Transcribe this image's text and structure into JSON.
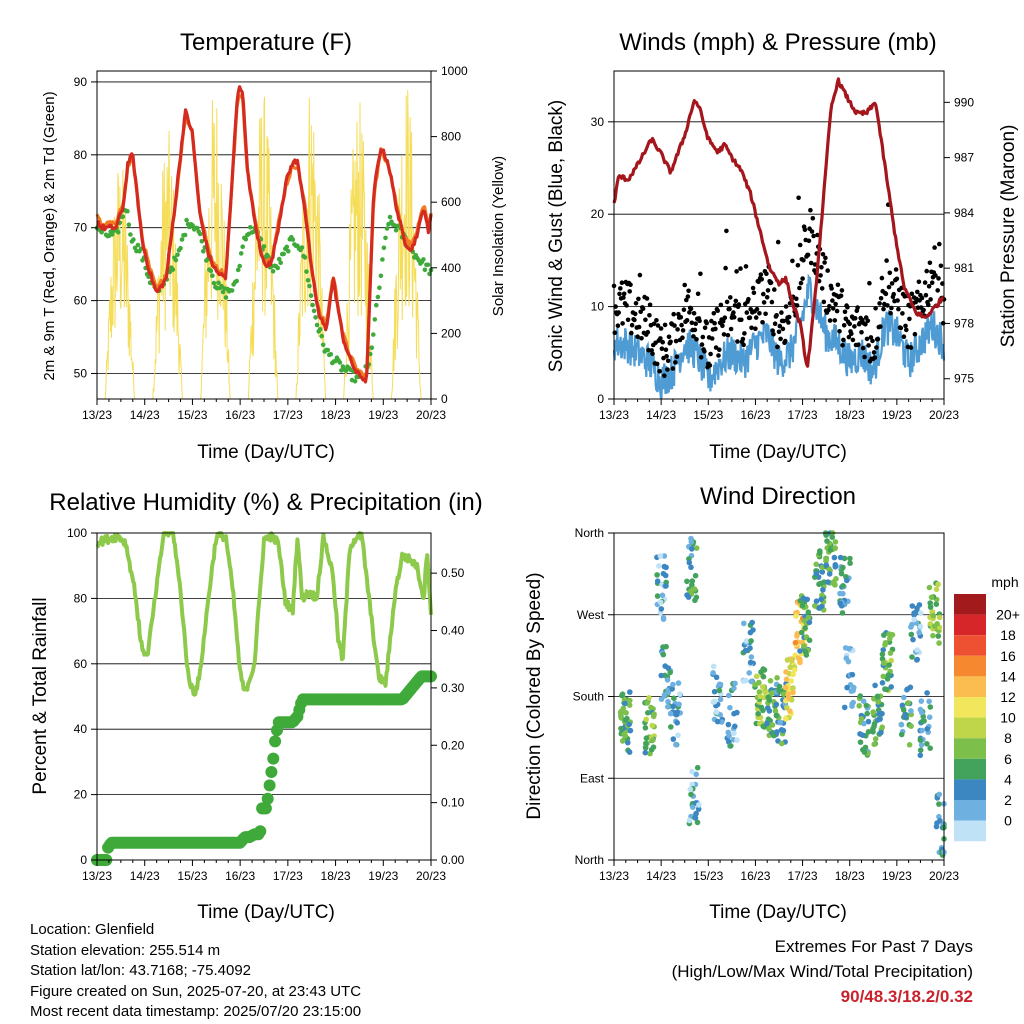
{
  "info": {
    "location": "Location: Glenfield",
    "elevation": "Station elevation: 255.514 m",
    "latlon": "Station lat/lon: 43.7168; -75.4092",
    "created": "Figure created on Sun, 2025-07-20, at 23:43 UTC",
    "recent": "Most recent data timestamp: 2025/07/20 23:15:00"
  },
  "extremes": {
    "title": "Extremes For Past 7 Days",
    "subtitle": "(High/Low/Max Wind/Total Precipitation)",
    "values": "90/48.3/18.2/0.32",
    "color": "#c8232c"
  },
  "colors": {
    "temp2m": "#d42a20",
    "temp9m": "#f07b22",
    "dewpoint": "#3faa3a",
    "solar": "#f5dd5a",
    "wind": "#4f9bd4",
    "gust": "#000000",
    "pressure": "#a4161c",
    "rh": "#8dca4b",
    "precip": "#3faa3a"
  },
  "chart_data": [
    {
      "type": "line",
      "title": "Temperature (F)",
      "xlabel": "Time (Day/UTC)",
      "ylabel": "2m & 9m T (Red, Orange) & 2m Td (Green)",
      "y2label": "Solar Insolation (Yellow)",
      "x_ticks": [
        "13/23",
        "14/23",
        "15/23",
        "16/23",
        "17/23",
        "18/23",
        "19/23",
        "20/23"
      ],
      "y_ticks": [
        50,
        60,
        70,
        80,
        90
      ],
      "y2_ticks": [
        0,
        200,
        400,
        600,
        800,
        1000
      ],
      "xlim": [
        0,
        7
      ],
      "ylim": [
        46.5,
        91.5
      ],
      "y2lim": [
        0,
        1000
      ],
      "grid": true,
      "series": [
        {
          "name": "2m T",
          "axis": "left",
          "x": [
            0,
            0.1,
            0.4,
            0.55,
            0.65,
            0.75,
            0.95,
            1.1,
            1.25,
            1.45,
            1.65,
            1.85,
            2.0,
            2.15,
            2.35,
            2.5,
            2.7,
            2.95,
            3.05,
            3.15,
            3.3,
            3.45,
            3.55,
            3.65,
            3.8,
            3.95,
            4.1,
            4.2,
            4.35,
            4.5,
            4.65,
            4.8,
            4.95,
            5.15,
            5.3,
            5.45,
            5.65,
            5.8,
            5.95,
            6.1,
            6.3,
            6.45,
            6.6,
            6.75,
            6.85,
            6.95,
            7.0
          ],
          "values": [
            71,
            70,
            70,
            73,
            79,
            80,
            68,
            64,
            61,
            63,
            74,
            86,
            83,
            72,
            66,
            64,
            63,
            89,
            89,
            78,
            71,
            66,
            65,
            65,
            70,
            76,
            79,
            79,
            73,
            64,
            58,
            56,
            63,
            55,
            52,
            50,
            49,
            75,
            81,
            79,
            72,
            68,
            67,
            70,
            73,
            69,
            72
          ]
        },
        {
          "name": "9m T",
          "axis": "left",
          "x": [
            0,
            0.1,
            0.4,
            0.55,
            0.65,
            0.75,
            0.95,
            1.1,
            1.25,
            1.45,
            1.65,
            1.85,
            2.0,
            2.15,
            2.35,
            2.5,
            2.7,
            2.95,
            3.05,
            3.15,
            3.3,
            3.45,
            3.55,
            3.65,
            3.8,
            3.95,
            4.1,
            4.2,
            4.35,
            4.5,
            4.65,
            4.8,
            4.95,
            5.15,
            5.3,
            5.45,
            5.65,
            5.8,
            5.95,
            6.1,
            6.3,
            6.45,
            6.6,
            6.75,
            6.85,
            6.95,
            7.0
          ],
          "values": [
            71.5,
            70.5,
            70.5,
            73.5,
            78.5,
            79.5,
            68.5,
            64.5,
            61.5,
            63.5,
            73.5,
            85.5,
            83,
            72.5,
            66.5,
            64.5,
            63.5,
            88,
            88,
            78,
            71.5,
            66.5,
            65.5,
            65.5,
            70.5,
            75.5,
            78.5,
            78.5,
            73.5,
            64.5,
            58.5,
            56.5,
            63.5,
            55.5,
            52.5,
            50.5,
            49.5,
            74.5,
            80.5,
            79,
            72.5,
            68.5,
            67.5,
            70.5,
            73,
            70,
            72
          ]
        },
        {
          "name": "2m Td",
          "axis": "left",
          "x": [
            0,
            0.2,
            0.4,
            0.6,
            0.75,
            0.9,
            1.1,
            1.3,
            1.5,
            1.7,
            1.9,
            2.1,
            2.3,
            2.5,
            2.7,
            2.9,
            3.1,
            3.3,
            3.5,
            3.7,
            3.9,
            4.05,
            4.2,
            4.35,
            4.5,
            4.65,
            4.8,
            4.95,
            5.1,
            5.3,
            5.5,
            5.7,
            5.9,
            6.1,
            6.3,
            6.5,
            6.7,
            6.85,
            7.0
          ],
          "values": [
            70,
            69,
            69,
            73,
            68,
            67,
            63,
            61,
            64,
            66,
            71,
            70,
            66,
            62,
            61,
            62,
            69,
            70,
            67,
            64,
            66,
            68,
            68,
            66,
            60,
            56,
            53,
            52,
            51,
            50,
            49,
            51,
            61,
            71,
            70,
            68,
            66,
            65,
            64
          ]
        },
        {
          "name": "Solar Insolation",
          "axis": "right",
          "day_x": [
            0.05,
            1.05,
            2.05,
            3.05,
            4.05,
            5.05,
            6.05
          ],
          "peaks": [
            750,
            830,
            980,
            950,
            1000,
            920,
            1000
          ]
        }
      ]
    },
    {
      "type": "line",
      "title": "Winds (mph) & Pressure (mb)",
      "xlabel": "Time (Day/UTC)",
      "ylabel": "Sonic Wind & Gust (Blue, Black)",
      "y2label": "Station Pressure (Maroon)",
      "x_ticks": [
        "13/23",
        "14/23",
        "15/23",
        "16/23",
        "17/23",
        "18/23",
        "19/23",
        "20/23"
      ],
      "y_ticks": [
        0,
        10,
        20,
        30
      ],
      "y2_ticks": [
        975,
        978,
        981,
        984,
        987,
        990
      ],
      "xlim": [
        0,
        7
      ],
      "ylim": [
        0,
        35.5
      ],
      "y2lim": [
        973.9,
        991.7
      ],
      "grid": true,
      "series": [
        {
          "name": "Gust",
          "axis": "left",
          "x": [
            0,
            0.25,
            0.5,
            0.75,
            1.0,
            1.25,
            1.5,
            1.75,
            2.0,
            2.25,
            2.5,
            2.75,
            3.0,
            3.25,
            3.5,
            3.75,
            4.0,
            4.15,
            4.3,
            4.5,
            4.75,
            5.0,
            5.25,
            5.5,
            5.75,
            6.0,
            6.25,
            6.5,
            6.75,
            7.0
          ],
          "values": [
            10,
            10,
            9,
            8,
            5,
            6,
            10,
            9,
            5,
            8,
            9,
            8,
            10,
            12,
            8,
            9,
            15,
            18,
            16,
            12,
            10,
            7,
            8,
            6,
            13,
            11,
            8,
            10,
            14,
            11
          ]
        },
        {
          "name": "Wind",
          "axis": "left",
          "x": [
            0,
            0.25,
            0.5,
            0.75,
            1.0,
            1.25,
            1.5,
            1.75,
            2.0,
            2.25,
            2.5,
            2.75,
            3.0,
            3.25,
            3.5,
            3.75,
            4.0,
            4.15,
            4.3,
            4.5,
            4.75,
            5.0,
            5.25,
            5.5,
            5.75,
            6.0,
            6.25,
            6.5,
            6.75,
            7.0
          ],
          "values": [
            6,
            6,
            5,
            4,
            2,
            3,
            6,
            5,
            2,
            4,
            5,
            4,
            6,
            7,
            4,
            5,
            9,
            12,
            10,
            7,
            6,
            4,
            5,
            3,
            8,
            7,
            4,
            6,
            8,
            6
          ]
        },
        {
          "name": "Pressure",
          "axis": "right",
          "x": [
            0,
            0.1,
            0.3,
            0.5,
            0.8,
            1.0,
            1.2,
            1.5,
            1.7,
            1.8,
            2.0,
            2.2,
            2.35,
            2.5,
            2.7,
            2.9,
            3.1,
            3.3,
            3.5,
            3.65,
            3.8,
            3.95,
            4.1,
            4.25,
            4.45,
            4.6,
            4.75,
            5.0,
            5.15,
            5.35,
            5.55,
            5.75,
            5.95,
            6.15,
            6.4,
            6.6,
            6.85,
            7.0
          ],
          "values": [
            984.5,
            986,
            985.8,
            986.6,
            988,
            987.2,
            986.2,
            988.2,
            990.1,
            989.8,
            988,
            987.3,
            987.7,
            987,
            986.3,
            985,
            983,
            981,
            980.2,
            980.4,
            979,
            978,
            975.5,
            979,
            985,
            989.6,
            991.2,
            990,
            989.4,
            989.4,
            990,
            986.5,
            983,
            980,
            978.6,
            978.3,
            979,
            979.5
          ]
        }
      ]
    },
    {
      "type": "line",
      "title": "Relative Humidity (%) & Precipitation (in)",
      "xlabel": "Time (Day/UTC)",
      "ylabel": "Percent & Total Rainfall",
      "x_ticks": [
        "13/23",
        "14/23",
        "15/23",
        "16/23",
        "17/23",
        "18/23",
        "19/23",
        "20/23"
      ],
      "y_ticks": [
        0,
        20,
        40,
        60,
        80,
        100
      ],
      "y2_ticks": [
        "0.00",
        "0.10",
        "0.20",
        "0.30",
        "0.40",
        "0.50"
      ],
      "xlim": [
        0,
        7
      ],
      "ylim": [
        0,
        100
      ],
      "y2lim": [
        0,
        0.57
      ],
      "grid": true,
      "series": [
        {
          "name": "RH",
          "axis": "left",
          "x": [
            0,
            0.2,
            0.45,
            0.6,
            0.8,
            0.92,
            1.05,
            1.2,
            1.4,
            1.6,
            1.75,
            1.92,
            2.05,
            2.15,
            2.35,
            2.5,
            2.7,
            2.85,
            3.0,
            3.1,
            3.3,
            3.5,
            3.65,
            3.8,
            3.95,
            4.1,
            4.2,
            4.3,
            4.45,
            4.6,
            4.75,
            4.95,
            5.05,
            5.15,
            5.3,
            5.45,
            5.55,
            5.7,
            5.9,
            6.05,
            6.25,
            6.4,
            6.55,
            6.7,
            6.85,
            6.92,
            7.0
          ],
          "values": [
            97,
            98,
            99,
            97,
            82,
            66,
            62,
            78,
            100,
            100,
            82,
            55,
            51,
            56,
            82,
            99,
            99,
            82,
            57,
            51,
            60,
            98,
            99,
            97,
            79,
            76,
            99,
            80,
            82,
            80,
            99,
            87,
            68,
            61,
            96,
            99,
            99,
            80,
            56,
            54,
            82,
            93,
            92,
            90,
            80,
            95,
            75
          ]
        },
        {
          "name": "Total Precipitation",
          "axis": "right",
          "x": [
            0,
            0.2,
            0.22,
            0.3,
            0.5,
            1.0,
            2.0,
            3.0,
            3.1,
            3.2,
            3.3,
            3.35,
            3.42,
            3.44,
            3.47,
            3.5,
            3.55,
            3.7,
            3.72,
            3.8,
            3.9,
            4.0,
            4.1,
            4.2,
            4.3,
            4.5,
            5.0,
            5.5,
            6.0,
            6.4,
            6.5,
            6.6,
            6.7,
            6.8,
            6.9,
            7.0
          ],
          "values": [
            0,
            0,
            0.02,
            0.03,
            0.03,
            0.03,
            0.03,
            0.03,
            0.04,
            0.04,
            0.045,
            0.045,
            0.045,
            0.09,
            0.09,
            0.09,
            0.09,
            0.18,
            0.2,
            0.24,
            0.24,
            0.24,
            0.24,
            0.25,
            0.28,
            0.28,
            0.28,
            0.28,
            0.28,
            0.28,
            0.29,
            0.3,
            0.31,
            0.32,
            0.32,
            0.32
          ]
        }
      ]
    },
    {
      "type": "scatter",
      "title": "Wind Direction",
      "xlabel": "Time (Day/UTC)",
      "ylabel": "Direction (Colored By Speed)",
      "x_ticks": [
        "13/23",
        "14/23",
        "15/23",
        "16/23",
        "17/23",
        "18/23",
        "19/23",
        "20/23"
      ],
      "y_ticks": [
        "North",
        "East",
        "South",
        "West",
        "North"
      ],
      "xlim": [
        0,
        7
      ],
      "ylim": [
        0,
        360
      ],
      "grid": true,
      "legend": {
        "title": "mph",
        "position": "right",
        "labels": [
          "20+",
          "18",
          "16",
          "14",
          "12",
          "10",
          "8",
          "6",
          "4",
          "2",
          "0"
        ],
        "colors": [
          "#a31a1c",
          "#d7262a",
          "#ee5132",
          "#f6892f",
          "#fbbd4f",
          "#f2e75c",
          "#bfd54a",
          "#7cc04b",
          "#43a35c",
          "#3c86c2",
          "#6eb1e1",
          "#bfe2f7"
        ]
      },
      "clusters": [
        {
          "x": 0.25,
          "dir": 150,
          "speed": 6,
          "n": 40
        },
        {
          "x": 0.75,
          "dir": 150,
          "speed": 7,
          "n": 30
        },
        {
          "x": 1.0,
          "dir": 300,
          "speed": 3,
          "n": 25
        },
        {
          "x": 1.1,
          "dir": 200,
          "speed": 4,
          "n": 25
        },
        {
          "x": 1.3,
          "dir": 160,
          "speed": 3,
          "n": 25
        },
        {
          "x": 1.65,
          "dir": 320,
          "speed": 5,
          "n": 25
        },
        {
          "x": 1.7,
          "dir": 70,
          "speed": 3,
          "n": 25
        },
        {
          "x": 2.2,
          "dir": 180,
          "speed": 3,
          "n": 25
        },
        {
          "x": 2.5,
          "dir": 160,
          "speed": 3,
          "n": 20
        },
        {
          "x": 2.85,
          "dir": 230,
          "speed": 3,
          "n": 25
        },
        {
          "x": 3.1,
          "dir": 180,
          "speed": 8,
          "n": 35
        },
        {
          "x": 3.35,
          "dir": 170,
          "speed": 6,
          "n": 30
        },
        {
          "x": 3.55,
          "dir": 160,
          "speed": 5,
          "n": 30
        },
        {
          "x": 3.75,
          "dir": 190,
          "speed": 12,
          "n": 30
        },
        {
          "x": 3.95,
          "dir": 250,
          "speed": 14,
          "n": 30
        },
        {
          "x": 4.05,
          "dir": 260,
          "speed": 6,
          "n": 30
        },
        {
          "x": 4.35,
          "dir": 310,
          "speed": 6,
          "n": 30
        },
        {
          "x": 4.6,
          "dir": 335,
          "speed": 6,
          "n": 35
        },
        {
          "x": 4.9,
          "dir": 300,
          "speed": 4,
          "n": 25
        },
        {
          "x": 5.0,
          "dir": 200,
          "speed": 2,
          "n": 20
        },
        {
          "x": 5.3,
          "dir": 150,
          "speed": 5,
          "n": 25
        },
        {
          "x": 5.6,
          "dir": 160,
          "speed": 6,
          "n": 30
        },
        {
          "x": 5.8,
          "dir": 220,
          "speed": 7,
          "n": 30
        },
        {
          "x": 6.2,
          "dir": 160,
          "speed": 5,
          "n": 25
        },
        {
          "x": 6.4,
          "dir": 250,
          "speed": 3,
          "n": 25
        },
        {
          "x": 6.6,
          "dir": 150,
          "speed": 4,
          "n": 25
        },
        {
          "x": 6.8,
          "dir": 270,
          "speed": 8,
          "n": 30
        },
        {
          "x": 6.95,
          "dir": 40,
          "speed": 4,
          "n": 20
        }
      ]
    }
  ]
}
